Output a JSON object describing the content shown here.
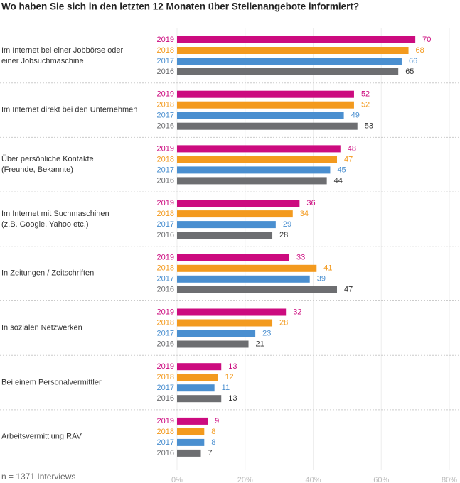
{
  "chart_data": {
    "type": "bar",
    "orientation": "horizontal",
    "title": "Wo haben Sie sich in den letzten 12 Monaten über Stellenangebote informiert?",
    "note": "n = 1371 Interviews",
    "categories": [
      "Im Internet bei einer Jobbörse oder\neiner Jobsuchmaschine",
      "Im Internet direkt bei den Unternehmen",
      "Über persönliche Kontakte\n(Freunde, Bekannte)",
      "Im Internet mit Suchmaschinen\n(z.B. Google, Yahoo etc.)",
      "In Zeitungen / Zeitschriften",
      "In sozialen Netzwerken",
      "Bei einem Personalvermittler",
      "Arbeitsvermittlung RAV"
    ],
    "series": [
      {
        "name": "2019",
        "color": "#cc0b7f",
        "values": [
          70,
          52,
          48,
          36,
          33,
          32,
          13,
          9
        ]
      },
      {
        "name": "2018",
        "color": "#f39a1e",
        "values": [
          68,
          52,
          47,
          34,
          41,
          28,
          12,
          8
        ]
      },
      {
        "name": "2017",
        "color": "#4a8fd0",
        "values": [
          66,
          49,
          45,
          29,
          39,
          23,
          11,
          8
        ]
      },
      {
        "name": "2016",
        "color": "#6d6e71",
        "values": [
          65,
          53,
          44,
          28,
          47,
          21,
          13,
          7
        ]
      }
    ],
    "xlim": [
      0,
      80
    ],
    "xticks": [
      {
        "value": 0,
        "label": "0%"
      },
      {
        "value": 20,
        "label": "20%"
      },
      {
        "value": 40,
        "label": "40%"
      },
      {
        "value": 60,
        "label": "60%"
      },
      {
        "value": 80,
        "label": "80%"
      }
    ],
    "grid": true
  }
}
